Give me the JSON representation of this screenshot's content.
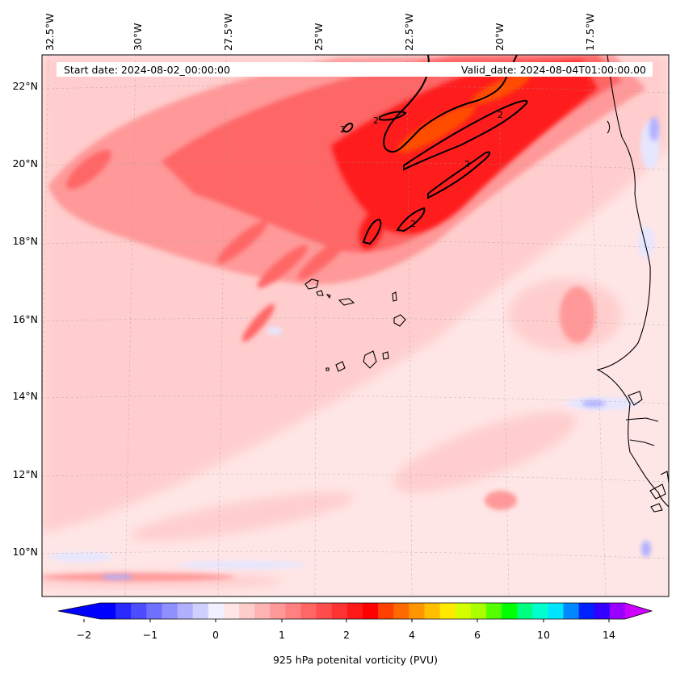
{
  "map": {
    "start_label": "Start date: 2024-08-02_00:00:00",
    "valid_label": "Valid_date: 2024-08-04T01:00:00.00",
    "lon_labels": [
      "32.5°W",
      "30°W",
      "27.5°W",
      "25°W",
      "22.5°W",
      "20°W",
      "17.5°W"
    ],
    "lat_labels": [
      "22°N",
      "20°N",
      "18°N",
      "16°N",
      "14°N",
      "12°N",
      "10°N"
    ],
    "contour_label": "2",
    "colors": {
      "sea_background": "#ffe6e6",
      "light_pink": "#ffcccc",
      "pink": "#ff9999",
      "salmon": "#ff6666",
      "red_light": "#ff3333",
      "red": "#ff0000",
      "orange_red": "#ff4d00",
      "light_blue": "#e6e6ff",
      "contour": "#000000",
      "coast": "#000000"
    }
  },
  "colorbar": {
    "label": "925 hPa potenital vorticity (PVU)",
    "ticks": [
      "−2",
      "−1",
      "0",
      "1",
      "2",
      "4",
      "6",
      "10",
      "14"
    ],
    "colors": [
      "#0000ff",
      "#2a2aff",
      "#4d4dff",
      "#7070ff",
      "#8f8fff",
      "#b0b0ff",
      "#d0d0ff",
      "#f0f0ff",
      "#ffe6e6",
      "#ffcccc",
      "#ffb3b3",
      "#ff9999",
      "#ff8080",
      "#ff6666",
      "#ff4d4d",
      "#ff3333",
      "#ff1a1a",
      "#ff0000",
      "#ff4000",
      "#ff6a00",
      "#ff9500",
      "#ffbf00",
      "#ffea00",
      "#d5ff00",
      "#aaff00",
      "#55ff00",
      "#00ff00",
      "#00ff80",
      "#00ffcc",
      "#00e5ff",
      "#0088ff",
      "#0022ff",
      "#3300ff",
      "#9900ff"
    ],
    "under_color": "#0000ff",
    "over_color": "#cc00ff"
  }
}
